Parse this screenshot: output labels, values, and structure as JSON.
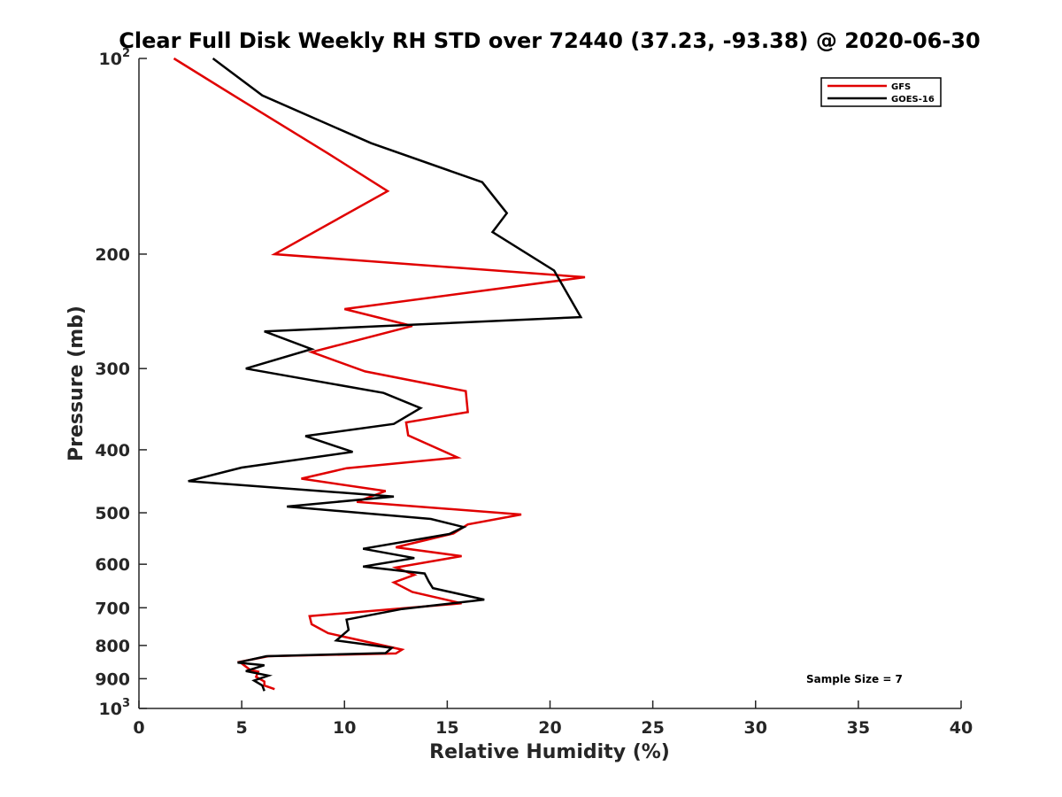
{
  "chart_data": {
    "type": "line",
    "title": "Clear Full Disk Weekly RH STD over 72440 (37.23, -93.38) @ 2020-06-30",
    "xlabel": "Relative Humidity (%)",
    "ylabel": "Pressure (mb)",
    "xlim": [
      0,
      40
    ],
    "ylim": [
      100,
      1000
    ],
    "yscale": "log",
    "y_reversed": true,
    "x_ticks": [
      "0",
      "5",
      "10",
      "15",
      "20",
      "25",
      "30",
      "35",
      "40"
    ],
    "y_ticks": [
      {
        "value": 100,
        "label": "10",
        "sup": "2"
      },
      {
        "value": 200,
        "label": "200",
        "sup": ""
      },
      {
        "value": 300,
        "label": "300",
        "sup": ""
      },
      {
        "value": 400,
        "label": "400",
        "sup": ""
      },
      {
        "value": 500,
        "label": "500",
        "sup": ""
      },
      {
        "value": 600,
        "label": "600",
        "sup": ""
      },
      {
        "value": 700,
        "label": "700",
        "sup": ""
      },
      {
        "value": 800,
        "label": "800",
        "sup": ""
      },
      {
        "value": 900,
        "label": "900",
        "sup": ""
      },
      {
        "value": 1000,
        "label": "10",
        "sup": "3"
      }
    ],
    "grid": false,
    "legend_position": "top-right",
    "annotation": "Sample Size = 7",
    "series": [
      {
        "name": "GFS",
        "color": "#e00000",
        "points": [
          [
            1.7,
            100
          ],
          [
            4.8,
            115
          ],
          [
            9.2,
            140
          ],
          [
            12.1,
            160
          ],
          [
            6.6,
            200
          ],
          [
            21.7,
            217
          ],
          [
            10.0,
            243
          ],
          [
            13.3,
            258
          ],
          [
            8.4,
            283
          ],
          [
            11.0,
            303
          ],
          [
            15.9,
            325
          ],
          [
            16.0,
            350
          ],
          [
            13.0,
            363
          ],
          [
            13.1,
            380
          ],
          [
            15.5,
            411
          ],
          [
            10.1,
            427
          ],
          [
            7.9,
            443
          ],
          [
            12.0,
            463
          ],
          [
            10.6,
            481
          ],
          [
            18.6,
            503
          ],
          [
            16.0,
            521
          ],
          [
            15.3,
            538
          ],
          [
            12.5,
            565
          ],
          [
            15.7,
            583
          ],
          [
            12.5,
            607
          ],
          [
            13.4,
            623
          ],
          [
            12.4,
            640
          ],
          [
            13.3,
            662
          ],
          [
            15.7,
            689
          ],
          [
            8.3,
            721
          ],
          [
            8.4,
            742
          ],
          [
            9.2,
            766
          ],
          [
            12.8,
            812
          ],
          [
            12.5,
            823
          ],
          [
            6.3,
            831
          ],
          [
            4.9,
            848
          ],
          [
            5.4,
            872
          ],
          [
            5.8,
            878
          ],
          [
            5.7,
            894
          ],
          [
            6.1,
            909
          ],
          [
            6.1,
            922
          ],
          [
            6.6,
            934
          ]
        ]
      },
      {
        "name": "GOES-16",
        "color": "#000000",
        "points": [
          [
            3.6,
            100
          ],
          [
            6.0,
            114
          ],
          [
            11.3,
            135
          ],
          [
            16.7,
            155
          ],
          [
            17.9,
            173
          ],
          [
            17.2,
            185
          ],
          [
            20.2,
            212
          ],
          [
            21.5,
            250
          ],
          [
            6.1,
            263
          ],
          [
            8.4,
            280
          ],
          [
            5.2,
            300
          ],
          [
            11.9,
            327
          ],
          [
            13.7,
            345
          ],
          [
            12.4,
            365
          ],
          [
            8.1,
            381
          ],
          [
            10.4,
            403
          ],
          [
            5.0,
            426
          ],
          [
            2.4,
            447
          ],
          [
            12.4,
            472
          ],
          [
            7.2,
            489
          ],
          [
            14.2,
            511
          ],
          [
            15.8,
            526
          ],
          [
            15.1,
            539
          ],
          [
            10.9,
            568
          ],
          [
            13.4,
            587
          ],
          [
            10.9,
            605
          ],
          [
            13.9,
            620
          ],
          [
            14.1,
            638
          ],
          [
            14.3,
            653
          ],
          [
            16.8,
            680
          ],
          [
            12.8,
            703
          ],
          [
            10.1,
            730
          ],
          [
            10.2,
            757
          ],
          [
            9.6,
            786
          ],
          [
            12.3,
            807
          ],
          [
            12.0,
            822
          ],
          [
            6.2,
            831
          ],
          [
            4.8,
            850
          ],
          [
            6.1,
            858
          ],
          [
            5.2,
            876
          ],
          [
            6.3,
            890
          ],
          [
            5.6,
            906
          ],
          [
            6.0,
            922
          ],
          [
            6.1,
            940
          ]
        ]
      }
    ]
  }
}
